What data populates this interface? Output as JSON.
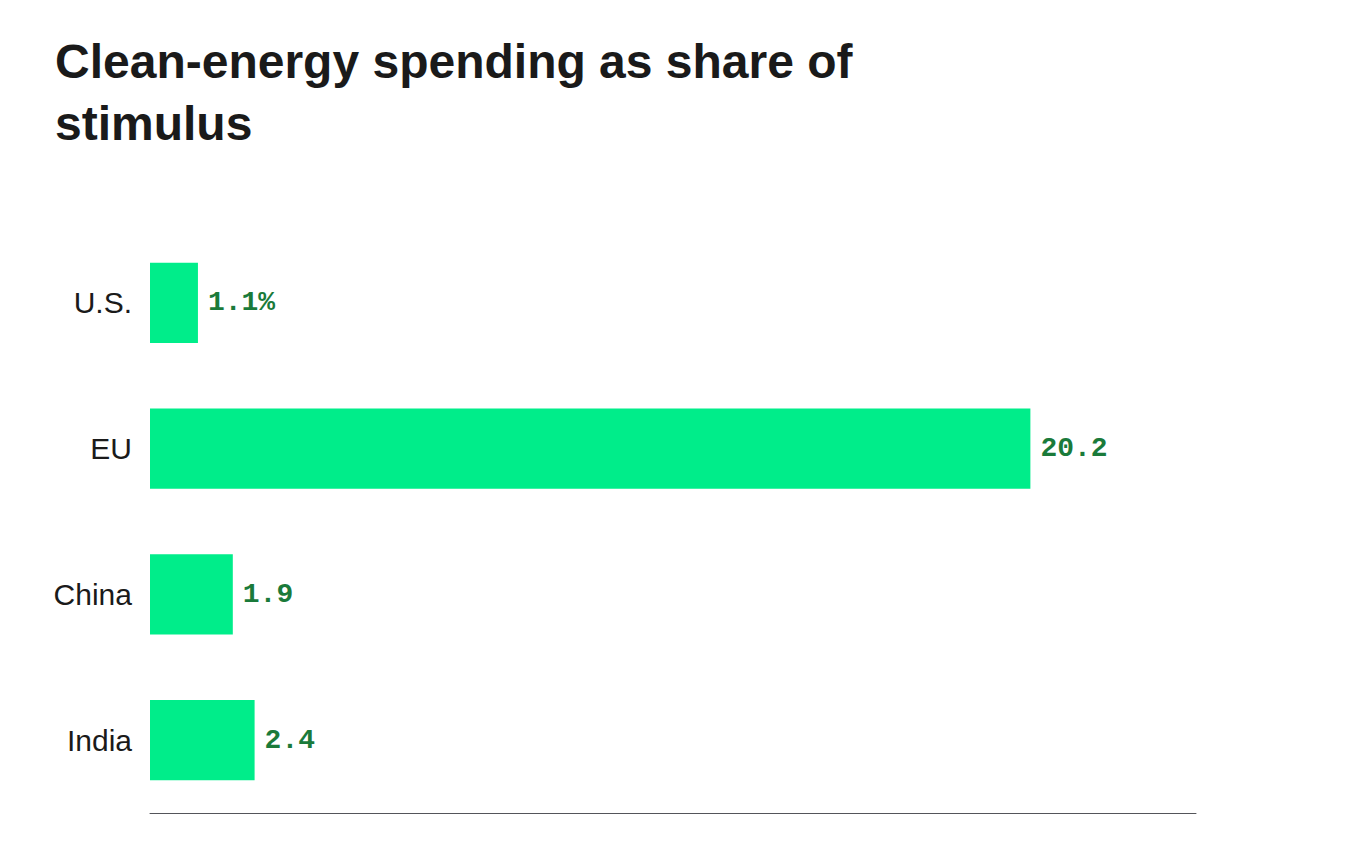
{
  "chart_data": {
    "type": "bar",
    "orientation": "horizontal",
    "title": "Clean-energy spending as share of\nstimulus",
    "categories": [
      "U.S.",
      "EU",
      "China",
      "India"
    ],
    "values": [
      1.1,
      20.2,
      1.9,
      2.4
    ],
    "value_labels": [
      "1.1%",
      "20.2",
      "1.9",
      "2.4"
    ],
    "data_labels": true,
    "color": "#00ED8A",
    "xlim": [
      0,
      24
    ],
    "tick_labels": "y",
    "grid": false
  }
}
